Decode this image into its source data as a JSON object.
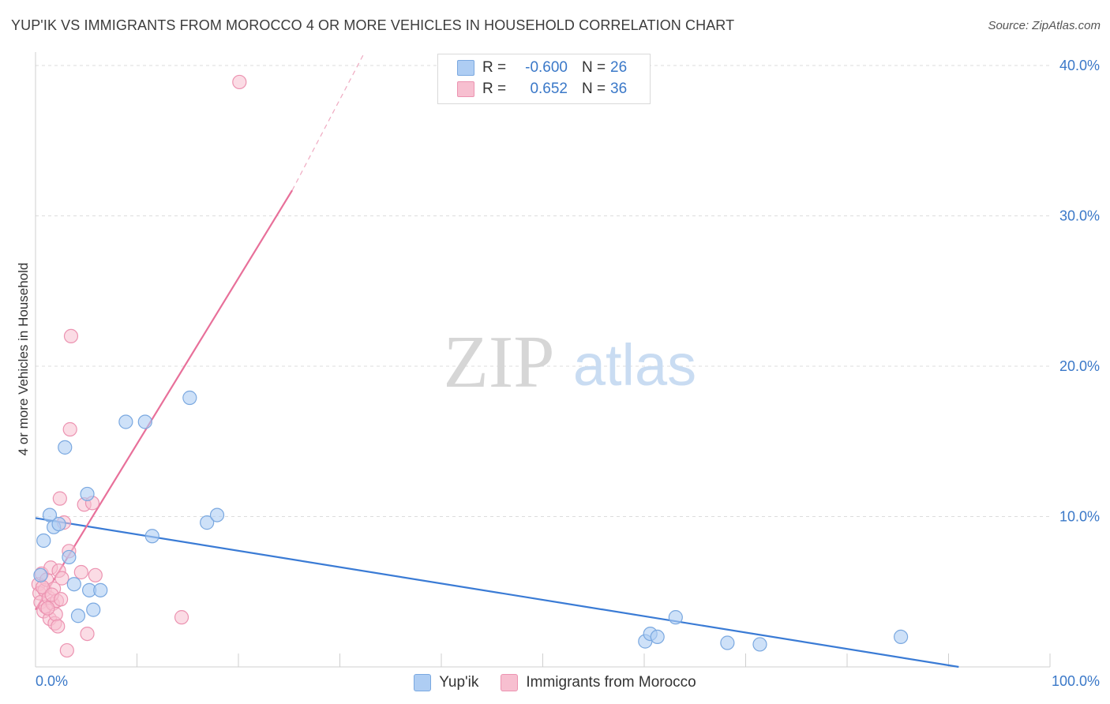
{
  "header": {
    "title": "YUP'IK VS IMMIGRANTS FROM MOROCCO 4 OR MORE VEHICLES IN HOUSEHOLD CORRELATION CHART",
    "source": "Source: ZipAtlas.com"
  },
  "watermark": {
    "zip": "ZIP",
    "atlas": "atlas"
  },
  "legend": {
    "rows": [
      {
        "r_label": "R =",
        "r_value": "-0.600",
        "n_label": "N =",
        "n_value": "26"
      },
      {
        "r_label": "R =",
        "r_value": "0.652",
        "n_label": "N =",
        "n_value": "36"
      }
    ]
  },
  "bottom_legend": {
    "series1": "Yup'ik",
    "series2": "Immigrants from Morocco"
  },
  "colors": {
    "blue_fill": "#aecdf3",
    "blue_stroke": "#7aa8e0",
    "blue_line": "#3a7bd5",
    "pink_fill": "#f7bfd0",
    "pink_stroke": "#ec93b1",
    "pink_line": "#e8709a",
    "tick_label": "#3a78c8",
    "grid": "#dddddd"
  },
  "chart_data": {
    "type": "scatter",
    "title": "YUP'IK VS IMMIGRANTS FROM MOROCCO 4 OR MORE VEHICLES IN HOUSEHOLD CORRELATION CHART",
    "xlabel": "",
    "ylabel": "4 or more Vehicles in Household",
    "xlim": [
      0,
      100
    ],
    "ylim": [
      0,
      40
    ],
    "y_ticks": [
      10,
      20,
      30,
      40
    ],
    "y_tick_labels": [
      "10.0%",
      "20.0%",
      "30.0%",
      "40.0%"
    ],
    "x_tick_labels": [
      "0.0%",
      "100.0%"
    ],
    "series": [
      {
        "name": "Yup'ik",
        "color": "#3a7bd5",
        "R": -0.6,
        "N": 26,
        "points": [
          [
            0.8,
            8.4
          ],
          [
            1.4,
            10.1
          ],
          [
            1.8,
            9.3
          ],
          [
            2.3,
            9.5
          ],
          [
            2.9,
            14.6
          ],
          [
            3.3,
            7.3
          ],
          [
            3.8,
            5.5
          ],
          [
            4.2,
            3.4
          ],
          [
            5.1,
            11.5
          ],
          [
            5.3,
            5.1
          ],
          [
            5.7,
            3.8
          ],
          [
            6.4,
            5.1
          ],
          [
            8.9,
            16.3
          ],
          [
            10.8,
            16.3
          ],
          [
            11.5,
            8.7
          ],
          [
            15.2,
            17.9
          ],
          [
            16.9,
            9.6
          ],
          [
            17.9,
            10.1
          ],
          [
            60.1,
            1.7
          ],
          [
            60.6,
            2.2
          ],
          [
            61.3,
            2.0
          ],
          [
            63.1,
            3.3
          ],
          [
            68.2,
            1.6
          ],
          [
            71.4,
            1.5
          ],
          [
            85.3,
            2.0
          ],
          [
            0.5,
            6.1
          ]
        ],
        "trend": [
          [
            0,
            9.9
          ],
          [
            91,
            0
          ]
        ]
      },
      {
        "name": "Immigrants from Morocco",
        "color": "#e8709a",
        "R": 0.652,
        "N": 36,
        "points": [
          [
            0.3,
            5.5
          ],
          [
            0.4,
            4.9
          ],
          [
            0.5,
            4.3
          ],
          [
            0.6,
            6.2
          ],
          [
            0.8,
            3.7
          ],
          [
            0.9,
            5.1
          ],
          [
            1.0,
            4.0
          ],
          [
            1.1,
            5.8
          ],
          [
            1.3,
            4.6
          ],
          [
            1.4,
            3.2
          ],
          [
            1.5,
            6.6
          ],
          [
            1.7,
            4.2
          ],
          [
            1.8,
            5.2
          ],
          [
            1.9,
            2.9
          ],
          [
            2.0,
            3.5
          ],
          [
            2.1,
            4.4
          ],
          [
            2.3,
            6.4
          ],
          [
            2.4,
            11.2
          ],
          [
            2.6,
            5.9
          ],
          [
            2.8,
            9.6
          ],
          [
            3.1,
            1.1
          ],
          [
            3.3,
            7.7
          ],
          [
            3.4,
            15.8
          ],
          [
            3.5,
            22.0
          ],
          [
            4.5,
            6.3
          ],
          [
            4.8,
            10.8
          ],
          [
            5.1,
            2.2
          ],
          [
            5.6,
            10.9
          ],
          [
            5.9,
            6.1
          ],
          [
            14.4,
            3.3
          ],
          [
            20.1,
            38.9
          ],
          [
            1.2,
            3.9
          ],
          [
            2.2,
            2.7
          ],
          [
            0.7,
            5.3
          ],
          [
            1.6,
            4.8
          ],
          [
            2.5,
            4.5
          ]
        ],
        "trend_solid": [
          [
            0,
            3.8
          ],
          [
            25.3,
            31.7
          ]
        ],
        "trend_dashed": [
          [
            25.3,
            31.7
          ],
          [
            32.3,
            40.7
          ]
        ]
      }
    ]
  }
}
